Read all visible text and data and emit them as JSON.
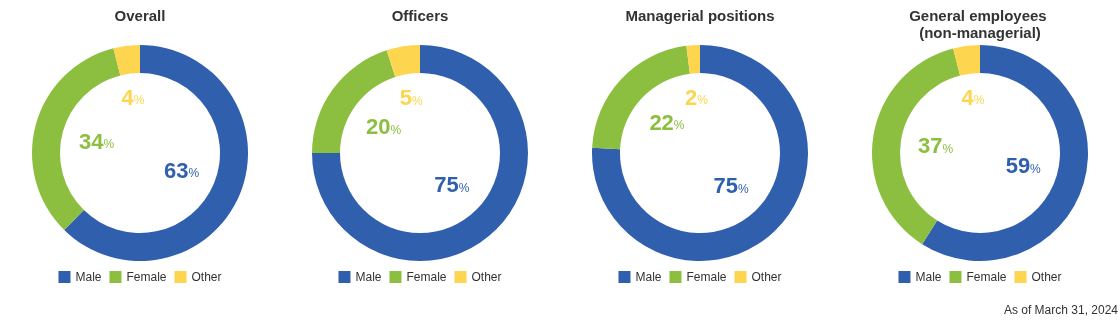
{
  "chart_data": [
    {
      "type": "donut",
      "title": "Overall",
      "categories": [
        "Male",
        "Female",
        "Other"
      ],
      "values": [
        63,
        34,
        4
      ],
      "value_labels": [
        "63%",
        "34%",
        "4%"
      ],
      "colors": [
        "#2f5fad",
        "#8cbf3f",
        "#fdd54f"
      ],
      "legend": "bottom"
    },
    {
      "type": "donut",
      "title": "Officers",
      "categories": [
        "Male",
        "Female",
        "Other"
      ],
      "values": [
        75,
        20,
        5
      ],
      "value_labels": [
        "75%",
        "20%",
        "5%"
      ],
      "colors": [
        "#2f5fad",
        "#8cbf3f",
        "#fdd54f"
      ],
      "legend": "bottom"
    },
    {
      "type": "donut",
      "title": "Managerial positions",
      "categories": [
        "Male",
        "Female",
        "Other"
      ],
      "values": [
        75,
        22,
        2
      ],
      "value_labels": [
        "75%",
        "22%",
        "2%"
      ],
      "colors": [
        "#2f5fad",
        "#8cbf3f",
        "#fdd54f"
      ],
      "legend": "bottom"
    },
    {
      "type": "donut",
      "title": "General employees (non-managerial)",
      "categories": [
        "Male",
        "Female",
        "Other"
      ],
      "values": [
        59,
        37,
        4
      ],
      "value_labels": [
        "59%",
        "37%",
        "4%"
      ],
      "colors": [
        "#2f5fad",
        "#8cbf3f",
        "#fdd54f"
      ],
      "legend": "bottom",
      "annotations": [
        "As of March 31, 2024"
      ]
    }
  ]
}
